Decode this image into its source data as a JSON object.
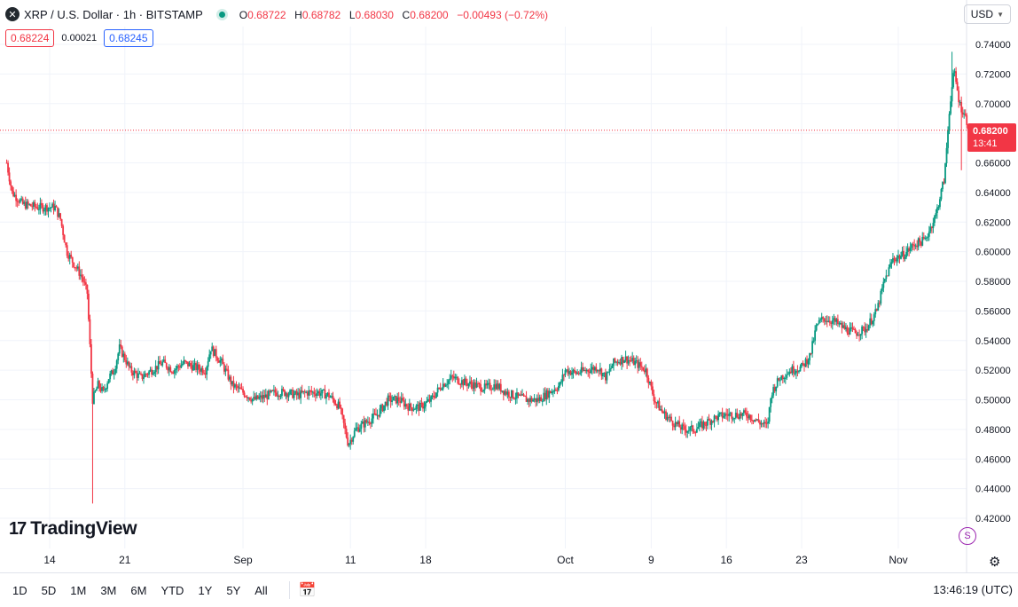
{
  "header": {
    "symbol_line": "XRP / U.S. Dollar · 1h · BITSTAMP",
    "symbol_icon": "xrp-icon",
    "open_key": "O",
    "open_val": "0.68722",
    "high_key": "H",
    "high_val": "0.68782",
    "low_key": "L",
    "low_val": "0.68030",
    "close_key": "C",
    "close_val": "0.68200",
    "change": "−0.00493 (−0.72%)",
    "bid": "0.68224",
    "spread": "0.00021",
    "ask": "0.68245",
    "currency": "USD"
  },
  "price_tag": {
    "price": "0.68200",
    "countdown": "13:41"
  },
  "logo": {
    "text": "TradingView",
    "mark": "17"
  },
  "toolbar": {
    "ranges": [
      "1D",
      "5D",
      "1M",
      "3M",
      "6M",
      "YTD",
      "1Y",
      "5Y",
      "All"
    ],
    "time": "13:46:19 (UTC)"
  },
  "colors": {
    "up": "#089981",
    "down": "#f23645",
    "grid": "#f0f3fa",
    "axis_text": "#131722"
  },
  "chart_data": {
    "type": "candlestick",
    "timeframe": "1h",
    "y_axis": {
      "ticks": [
        "0.74000",
        "0.72000",
        "0.70000",
        "0.68000",
        "0.66000",
        "0.64000",
        "0.62000",
        "0.60000",
        "0.58000",
        "0.56000",
        "0.54000",
        "0.52000",
        "0.50000",
        "0.48000",
        "0.46000",
        "0.44000",
        "0.42000"
      ],
      "range": [
        0.41,
        0.745
      ],
      "position": "right"
    },
    "x_axis": {
      "ticks": [
        {
          "label": "14",
          "day": 0
        },
        {
          "label": "21",
          "day": 7
        },
        {
          "label": "Sep",
          "day": 18
        },
        {
          "label": "11",
          "day": 28
        },
        {
          "label": "18",
          "day": 35
        },
        {
          "label": "Oct",
          "day": 48
        },
        {
          "label": "9",
          "day": 56
        },
        {
          "label": "16",
          "day": 63
        },
        {
          "label": "23",
          "day": 70
        },
        {
          "label": "Nov",
          "day": 79
        }
      ],
      "range_days": [
        -4,
        86.3
      ]
    },
    "current_price": 0.682,
    "grid": true,
    "series": [
      {
        "anchors": [
          [
            -4.0,
            0.66
          ],
          [
            -3.5,
            0.64
          ],
          [
            -2.5,
            0.632
          ],
          [
            -1.0,
            0.63
          ],
          [
            0.5,
            0.63
          ],
          [
            1.0,
            0.622
          ],
          [
            1.6,
            0.6
          ],
          [
            2.0,
            0.595
          ],
          [
            3.0,
            0.583
          ],
          [
            3.5,
            0.572
          ],
          [
            4.0,
            0.5
          ],
          [
            4.5,
            0.51
          ],
          [
            5.0,
            0.505
          ],
          [
            5.5,
            0.515
          ],
          [
            6.0,
            0.52
          ],
          [
            6.5,
            0.535
          ],
          [
            7.0,
            0.528
          ],
          [
            7.5,
            0.52
          ],
          [
            8.5,
            0.515
          ],
          [
            9.5,
            0.52
          ],
          [
            10.5,
            0.525
          ],
          [
            11.5,
            0.52
          ],
          [
            12.5,
            0.525
          ],
          [
            13.5,
            0.522
          ],
          [
            14.5,
            0.52
          ],
          [
            15.0,
            0.535
          ],
          [
            16.0,
            0.525
          ],
          [
            17.0,
            0.51
          ],
          [
            18.0,
            0.505
          ],
          [
            19.0,
            0.5
          ],
          [
            20.0,
            0.502
          ],
          [
            21.0,
            0.505
          ],
          [
            22.0,
            0.505
          ],
          [
            23.0,
            0.503
          ],
          [
            24.0,
            0.505
          ],
          [
            25.0,
            0.505
          ],
          [
            26.0,
            0.503
          ],
          [
            27.0,
            0.495
          ],
          [
            27.8,
            0.47
          ],
          [
            28.5,
            0.48
          ],
          [
            29.5,
            0.485
          ],
          [
            30.5,
            0.49
          ],
          [
            31.5,
            0.5
          ],
          [
            32.5,
            0.5
          ],
          [
            33.5,
            0.495
          ],
          [
            34.5,
            0.495
          ],
          [
            35.5,
            0.5
          ],
          [
            36.5,
            0.51
          ],
          [
            37.5,
            0.515
          ],
          [
            38.5,
            0.512
          ],
          [
            39.5,
            0.51
          ],
          [
            40.5,
            0.508
          ],
          [
            41.5,
            0.51
          ],
          [
            42.5,
            0.505
          ],
          [
            43.5,
            0.502
          ],
          [
            44.5,
            0.5
          ],
          [
            45.5,
            0.5
          ],
          [
            46.5,
            0.505
          ],
          [
            47.5,
            0.51
          ],
          [
            48.0,
            0.52
          ],
          [
            49.0,
            0.518
          ],
          [
            50.0,
            0.52
          ],
          [
            51.0,
            0.522
          ],
          [
            51.8,
            0.515
          ],
          [
            52.5,
            0.525
          ],
          [
            53.5,
            0.528
          ],
          [
            54.5,
            0.525
          ],
          [
            55.5,
            0.52
          ],
          [
            56.3,
            0.5
          ],
          [
            57.0,
            0.492
          ],
          [
            58.0,
            0.485
          ],
          [
            59.0,
            0.48
          ],
          [
            60.0,
            0.48
          ],
          [
            61.0,
            0.484
          ],
          [
            62.0,
            0.488
          ],
          [
            63.0,
            0.49
          ],
          [
            64.0,
            0.49
          ],
          [
            65.0,
            0.49
          ],
          [
            66.0,
            0.485
          ],
          [
            66.8,
            0.482
          ],
          [
            67.2,
            0.505
          ],
          [
            68.0,
            0.515
          ],
          [
            69.0,
            0.52
          ],
          [
            70.0,
            0.522
          ],
          [
            70.8,
            0.53
          ],
          [
            71.4,
            0.55
          ],
          [
            72.0,
            0.555
          ],
          [
            73.0,
            0.553
          ],
          [
            74.0,
            0.548
          ],
          [
            75.0,
            0.545
          ],
          [
            76.0,
            0.548
          ],
          [
            77.0,
            0.56
          ],
          [
            77.7,
            0.58
          ],
          [
            78.5,
            0.595
          ],
          [
            79.5,
            0.598
          ],
          [
            80.5,
            0.605
          ],
          [
            81.5,
            0.608
          ],
          [
            82.5,
            0.625
          ],
          [
            83.3,
            0.65
          ],
          [
            83.8,
            0.7
          ],
          [
            84.2,
            0.722
          ],
          [
            84.7,
            0.7
          ],
          [
            85.3,
            0.69
          ],
          [
            85.6,
            0.682
          ]
        ]
      }
    ]
  }
}
